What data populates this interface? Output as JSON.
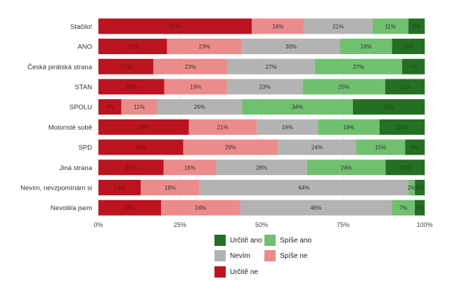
{
  "chart_data": {
    "type": "bar",
    "orientation": "horizontal",
    "stacked": true,
    "categories": [
      "Stačilo!",
      "ANO",
      "Česká pirátská strana",
      "STAN",
      "SPOLU",
      "Motoristé sobě",
      "SPD",
      "Jiná strana",
      "Nevím, nevzpomínám si",
      "Nevolil/a jsem"
    ],
    "series": [
      {
        "name": "Určitě ne",
        "color": "#bb141f",
        "label_color": "#7a0c12",
        "values": [
          47,
          21,
          17,
          20,
          7,
          28,
          26,
          20,
          13,
          19
        ]
      },
      {
        "name": "Spíše ne",
        "color": "#ec8b8b",
        "label_color": "#333333",
        "values": [
          16,
          23,
          23,
          19,
          11,
          21,
          29,
          16,
          18,
          24
        ]
      },
      {
        "name": "Nevím",
        "color": "#b3b3b3",
        "label_color": "#333333",
        "values": [
          21,
          30,
          27,
          23,
          26,
          19,
          24,
          28,
          64,
          46
        ]
      },
      {
        "name": "Spíše ano",
        "color": "#70c070",
        "label_color": "#333333",
        "values": [
          11,
          16,
          27,
          25,
          34,
          19,
          15,
          24,
          2,
          7
        ]
      },
      {
        "name": "Určitě ano",
        "color": "#246f24",
        "label_color": "#164d16",
        "values": [
          5,
          10,
          7,
          12,
          22,
          14,
          6,
          12,
          3,
          3
        ]
      }
    ],
    "xlim": [
      0,
      100
    ],
    "xticks": [
      "0%",
      "25%",
      "50%",
      "75%",
      "100%"
    ],
    "legend_position": "bottom",
    "grid": true
  }
}
